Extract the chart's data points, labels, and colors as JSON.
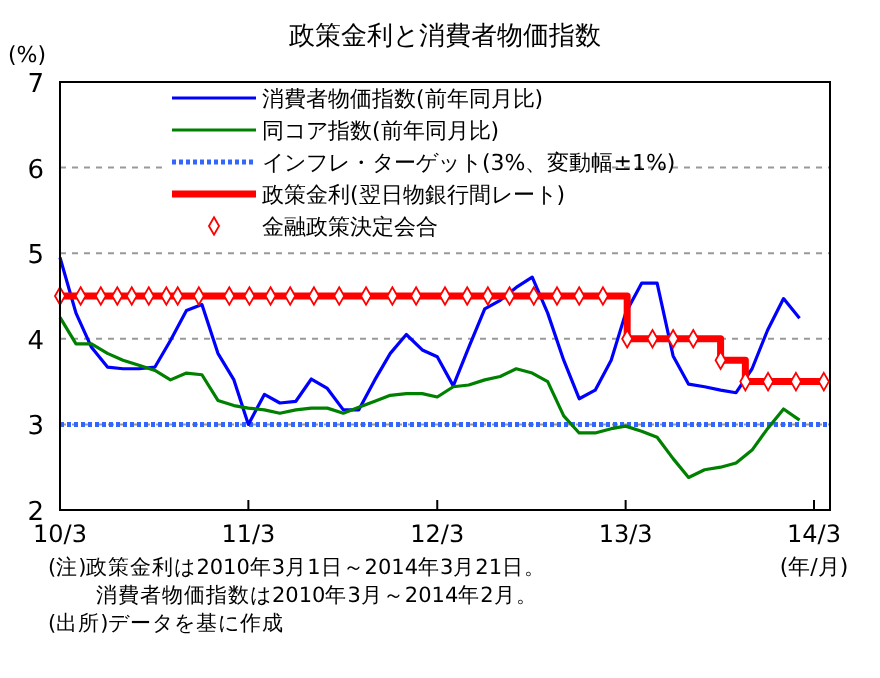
{
  "chart_data": {
    "type": "line",
    "title": "政策金利と消費者物価指数",
    "ylabel": "(%)",
    "xlabel": "(年/月)",
    "xlim": [
      "2010-03-01",
      "2014-04-01"
    ],
    "xticks": [
      {
        "value": "2010-03",
        "label": "10/3"
      },
      {
        "value": "2011-03",
        "label": "11/3"
      },
      {
        "value": "2012-03",
        "label": "12/3"
      },
      {
        "value": "2013-03",
        "label": "13/3"
      },
      {
        "value": "2014-03",
        "label": "14/3"
      }
    ],
    "ylim": [
      2,
      7
    ],
    "yticks": [
      2,
      3,
      4,
      5,
      6,
      7
    ],
    "grid": "y",
    "legend": "top right",
    "series": [
      {
        "name": "消費者物価指数(前年同月比)",
        "color": "#0000ff",
        "x": [
          "2010-03",
          "2010-04",
          "2010-05",
          "2010-06",
          "2010-07",
          "2010-08",
          "2010-09",
          "2010-10",
          "2010-11",
          "2010-12",
          "2011-01",
          "2011-02",
          "2011-03",
          "2011-04",
          "2011-05",
          "2011-06",
          "2011-07",
          "2011-08",
          "2011-09",
          "2011-10",
          "2011-11",
          "2011-12",
          "2012-01",
          "2012-02",
          "2012-03",
          "2012-04",
          "2012-05",
          "2012-06",
          "2012-07",
          "2012-08",
          "2012-09",
          "2012-10",
          "2012-11",
          "2012-12",
          "2013-01",
          "2013-02",
          "2013-03",
          "2013-04",
          "2013-05",
          "2013-06",
          "2013-07",
          "2013-08",
          "2013-09",
          "2013-10",
          "2013-11",
          "2013-12",
          "2014-01",
          "2014-02"
        ],
        "values": [
          4.95,
          4.3,
          3.9,
          3.67,
          3.65,
          3.65,
          3.67,
          3.98,
          4.33,
          4.4,
          3.83,
          3.52,
          3.0,
          3.35,
          3.25,
          3.27,
          3.53,
          3.42,
          3.17,
          3.17,
          3.52,
          3.83,
          4.05,
          3.87,
          3.79,
          3.45,
          3.9,
          4.35,
          4.45,
          4.6,
          4.72,
          4.3,
          3.75,
          3.3,
          3.4,
          3.75,
          4.3,
          4.65,
          4.65,
          3.8,
          3.47,
          3.44,
          3.4,
          3.37,
          3.65,
          4.1,
          4.47,
          4.24
        ]
      },
      {
        "name": "同コア指数(前年同月比)",
        "color": "#008000",
        "x": [
          "2010-03",
          "2010-04",
          "2010-05",
          "2010-06",
          "2010-07",
          "2010-08",
          "2010-09",
          "2010-10",
          "2010-11",
          "2010-12",
          "2011-01",
          "2011-02",
          "2011-03",
          "2011-04",
          "2011-05",
          "2011-06",
          "2011-07",
          "2011-08",
          "2011-09",
          "2011-10",
          "2011-11",
          "2011-12",
          "2012-01",
          "2012-02",
          "2012-03",
          "2012-04",
          "2012-05",
          "2012-06",
          "2012-07",
          "2012-08",
          "2012-09",
          "2012-10",
          "2012-11",
          "2012-12",
          "2013-01",
          "2013-02",
          "2013-03",
          "2013-04",
          "2013-05",
          "2013-06",
          "2013-07",
          "2013-08",
          "2013-09",
          "2013-10",
          "2013-11",
          "2013-12",
          "2014-01",
          "2014-02"
        ],
        "values": [
          4.25,
          3.94,
          3.94,
          3.83,
          3.75,
          3.69,
          3.63,
          3.52,
          3.6,
          3.58,
          3.28,
          3.22,
          3.19,
          3.17,
          3.13,
          3.17,
          3.19,
          3.19,
          3.13,
          3.2,
          3.27,
          3.34,
          3.36,
          3.36,
          3.32,
          3.44,
          3.46,
          3.52,
          3.56,
          3.65,
          3.6,
          3.5,
          3.1,
          2.9,
          2.9,
          2.95,
          2.98,
          2.92,
          2.85,
          2.6,
          2.38,
          2.47,
          2.5,
          2.55,
          2.7,
          2.95,
          3.18,
          3.05
        ]
      },
      {
        "name": "政策金利(翌日物銀行間レート)",
        "type": "step",
        "color": "#ff0000",
        "x": [
          "2010-03-01",
          "2013-03-04",
          "2013-09-01",
          "2013-10-19",
          "2014-03-21"
        ],
        "values": [
          4.5,
          4.0,
          3.75,
          3.5,
          3.5
        ]
      },
      {
        "name": "金融政策決定会合",
        "type": "scatter",
        "marker": "diamond",
        "color": "#ff0000",
        "x": [
          "2010-03-01",
          "2010-04-10",
          "2010-05-19",
          "2010-06-20",
          "2010-07-18",
          "2010-08-20",
          "2010-09-23",
          "2010-10-15",
          "2010-11-25",
          "2011-01-23",
          "2011-03-03",
          "2011-04-13",
          "2011-05-21",
          "2011-07-06",
          "2011-08-24",
          "2011-10-15",
          "2011-12-05",
          "2012-01-20",
          "2012-03-16",
          "2012-04-28",
          "2012-06-07",
          "2012-07-19",
          "2012-09-04",
          "2012-10-19",
          "2012-12-01",
          "2013-01-16",
          "2013-03-04",
          "2013-04-22",
          "2013-06-01",
          "2013-07-10",
          "2013-09-01",
          "2013-10-19",
          "2013-12-02",
          "2014-01-25",
          "2014-03-20"
        ],
        "values": [
          4.5,
          4.5,
          4.5,
          4.5,
          4.5,
          4.5,
          4.5,
          4.5,
          4.5,
          4.5,
          4.5,
          4.5,
          4.5,
          4.5,
          4.5,
          4.5,
          4.5,
          4.5,
          4.5,
          4.5,
          4.5,
          4.5,
          4.5,
          4.5,
          4.5,
          4.5,
          4.0,
          4.0,
          4.0,
          4.0,
          3.75,
          3.5,
          3.5,
          3.5,
          3.5
        ]
      }
    ],
    "ref_lines": [
      {
        "axis": "y",
        "value": 3,
        "label": "インフレ・ターゲット(3%、変動幅±1%)",
        "color": "#3366ff",
        "line_style": "dotted"
      }
    ],
    "annotations": [
      "(注)政策金利は2010年3月1日～2014年3月21日。",
      "消費者物価指数は2010年3月～2014年2月。",
      "(出所)データを基に作成"
    ]
  }
}
